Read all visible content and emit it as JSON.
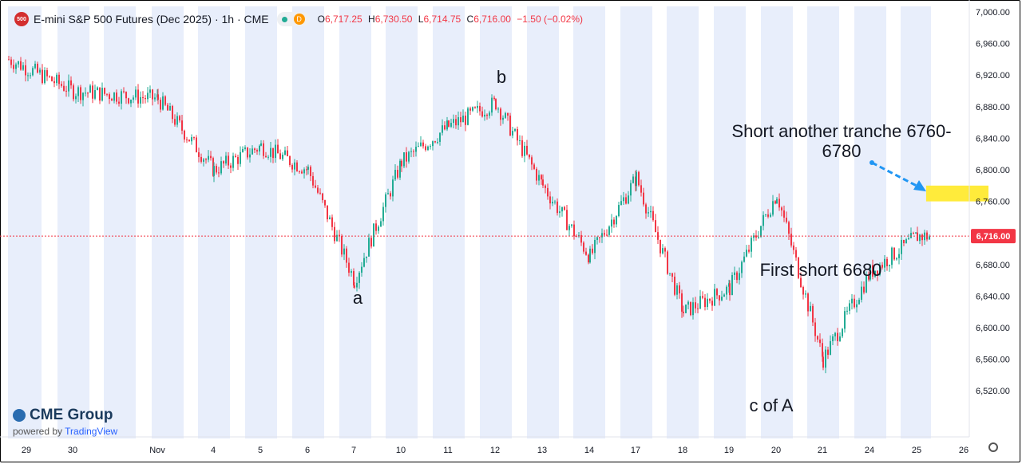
{
  "header": {
    "badge": "500",
    "symbol": "E-mini S&P 500 Futures (Dec 2025) · 1h · CME",
    "badge_d": "D",
    "ohlc": [
      {
        "k": "O",
        "v": "6,717.25"
      },
      {
        "k": "H",
        "v": "6,730.50"
      },
      {
        "k": "L",
        "v": "6,714.75"
      },
      {
        "k": "C",
        "v": "6,716.00"
      }
    ],
    "change": "−1.50 (−0.02%)"
  },
  "branding": {
    "name": "CME Group",
    "powered": "powered by",
    "platform": "TradingView"
  },
  "colors": {
    "up": "#22ab94",
    "down": "#f23645",
    "band": "#e8eefb",
    "price_line": "#f23645",
    "arrow": "#2196f3",
    "zone": "#ffeb3b"
  },
  "chart_data": {
    "type": "candlestick",
    "ylim": [
      6500,
      7000
    ],
    "y_ticks": [
      "7,000.00",
      "6,960.00",
      "6,920.00",
      "6,880.00",
      "6,840.00",
      "6,800.00",
      "6,760.00",
      "6,720.00",
      "6,680.00",
      "6,640.00",
      "6,600.00",
      "6,560.00",
      "6,520.00"
    ],
    "y_tick_values": [
      7000,
      6960,
      6920,
      6880,
      6840,
      6800,
      6760,
      6720,
      6680,
      6640,
      6600,
      6560,
      6520
    ],
    "x_ticks": [
      "29",
      "30",
      "Nov",
      "4",
      "5",
      "6",
      "7",
      "10",
      "11",
      "12",
      "13",
      "14",
      "17",
      "18",
      "19",
      "20",
      "21",
      "24",
      "25",
      "26"
    ],
    "last_price": 6716.0,
    "last_price_label": "6,716.00",
    "series_path": [
      {
        "day": "29",
        "close": 6940
      },
      {
        "day": "30",
        "close": 6900
      },
      {
        "day": "Nov",
        "close": 6890
      },
      {
        "day": "4",
        "close": 6800
      },
      {
        "day": "5",
        "close": 6830
      },
      {
        "day": "6",
        "close": 6800
      },
      {
        "day": "7",
        "close": 6660
      },
      {
        "day": "10",
        "close": 6810
      },
      {
        "day": "11",
        "close": 6855
      },
      {
        "day": "12",
        "close": 6885
      },
      {
        "day": "13",
        "close": 6780
      },
      {
        "day": "14",
        "close": 6690
      },
      {
        "day": "17",
        "close": 6790
      },
      {
        "day": "18",
        "close": 6620
      },
      {
        "day": "19",
        "close": 6650
      },
      {
        "day": "20",
        "close": 6770
      },
      {
        "day": "21",
        "close": 6560
      },
      {
        "day": "24",
        "close": 6670
      },
      {
        "day": "25",
        "close": 6716
      }
    ],
    "annotations": [
      {
        "text": "a",
        "x_day": "7",
        "y": 6640
      },
      {
        "text": "b",
        "x_day": "12",
        "y": 6910
      },
      {
        "text": "c of A",
        "x_day": "20",
        "y": 6515
      },
      {
        "text": "First short 6680",
        "x_day": "20",
        "y": 6683
      },
      {
        "text": "Short another tranche 6760-",
        "x_day": "21",
        "y": 6855
      },
      {
        "text": "6780",
        "x_day": "21",
        "y": 6825
      }
    ],
    "zone": {
      "y_low": 6760,
      "y_high": 6780
    },
    "grid": false
  }
}
